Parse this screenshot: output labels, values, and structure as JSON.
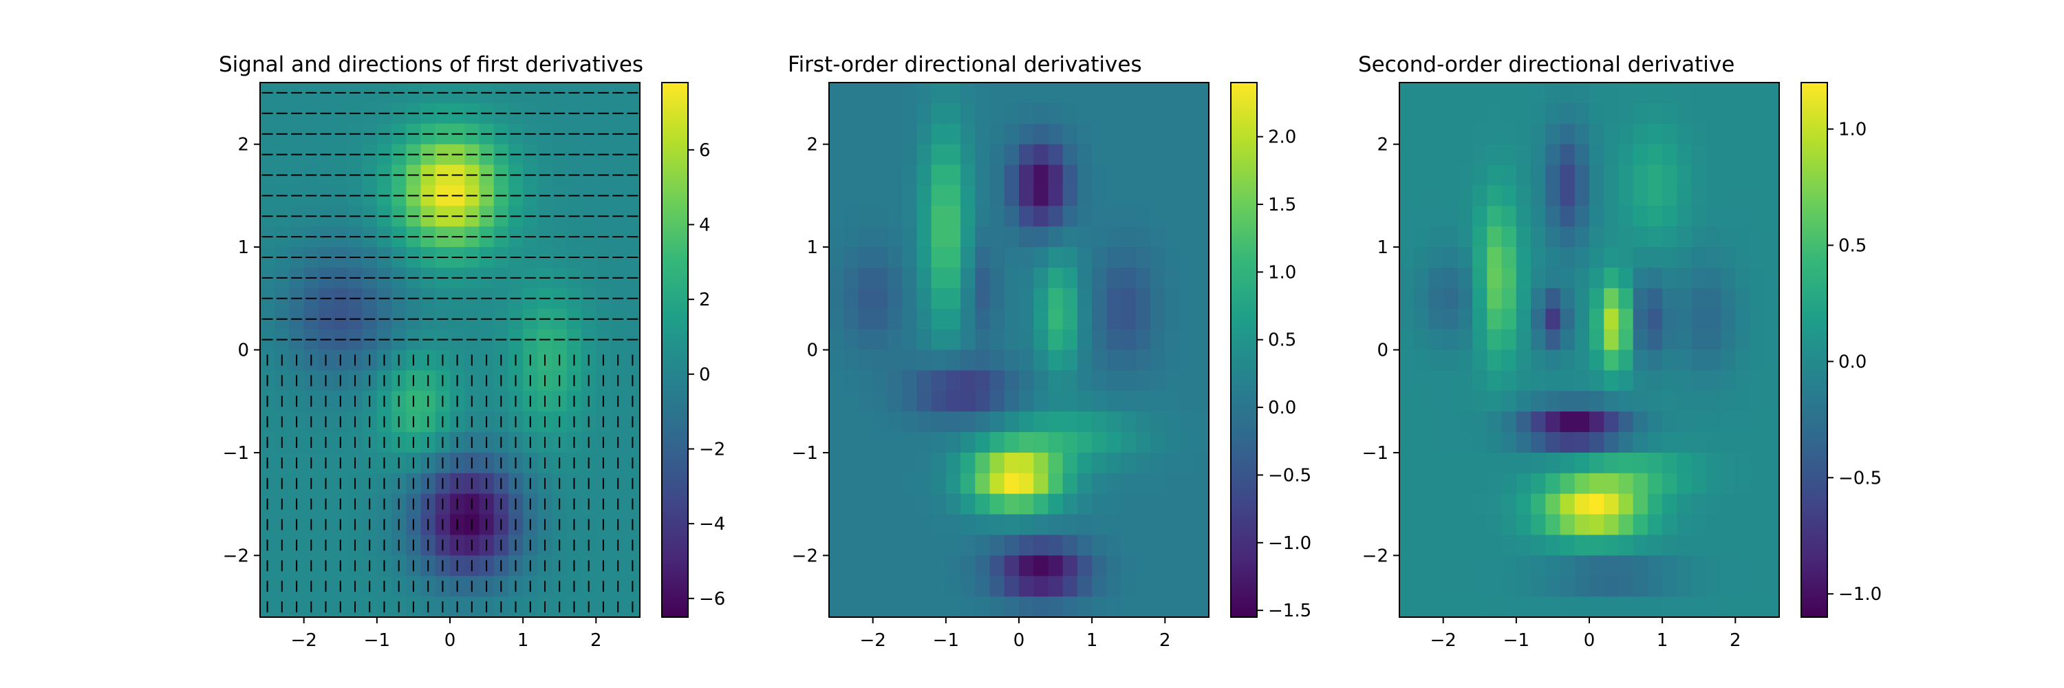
{
  "figure": {
    "colormap": "viridis",
    "viridis_stops": [
      "#440154",
      "#482878",
      "#3e4989",
      "#31688e",
      "#26828e",
      "#1f9e89",
      "#35b779",
      "#6ece58",
      "#b5de2b",
      "#fde725"
    ]
  },
  "chart_data": [
    {
      "type": "heatmap",
      "title": "Signal and directions of first derivatives",
      "xlabel": "",
      "ylabel": "",
      "xlim": [
        -2.6,
        2.6
      ],
      "ylim": [
        -2.6,
        2.6
      ],
      "xticks": [
        -2,
        -1,
        0,
        1,
        2
      ],
      "yticks": [
        -2,
        -1,
        0,
        1,
        2
      ],
      "xtick_labels": [
        "−2",
        "−1",
        "0",
        "1",
        "2"
      ],
      "ytick_labels": [
        "−2",
        "−1",
        "0",
        "1",
        "2"
      ],
      "grid_size": 26,
      "value_range": [
        -6.5,
        7.8
      ],
      "colorbar": {
        "ticks": [
          -6,
          -4,
          -2,
          0,
          2,
          4,
          6
        ],
        "labels": [
          "−6",
          "−4",
          "−2",
          "0",
          "2",
          "4",
          "6"
        ]
      },
      "field": {
        "baseline": 0.3,
        "blobs": [
          {
            "x": 0.0,
            "y": 1.55,
            "sx": 0.5,
            "sy": 0.4,
            "amp": 7.4
          },
          {
            "x": 0.25,
            "y": -1.65,
            "sx": 0.5,
            "sy": 0.4,
            "amp": -6.7
          },
          {
            "x": -1.5,
            "y": 0.35,
            "sx": 0.55,
            "sy": 0.45,
            "amp": -3.0
          },
          {
            "x": -0.45,
            "y": -0.55,
            "sx": 0.35,
            "sy": 0.35,
            "amp": 2.8
          },
          {
            "x": 1.35,
            "y": -0.1,
            "sx": 0.35,
            "sy": 0.5,
            "amp": 2.4
          }
        ]
      },
      "quiver": {
        "upper_region": "horizontal",
        "lower_region": "vertical",
        "split_y": 0.0
      }
    },
    {
      "type": "heatmap",
      "title": "First-order directional derivatives",
      "xlabel": "",
      "ylabel": "",
      "xlim": [
        -2.6,
        2.6
      ],
      "ylim": [
        -2.6,
        2.6
      ],
      "xticks": [
        -2,
        -1,
        0,
        1,
        2
      ],
      "yticks": [
        -2,
        -1,
        0,
        1,
        2
      ],
      "xtick_labels": [
        "−2",
        "−1",
        "0",
        "1",
        "2"
      ],
      "ytick_labels": [
        "−2",
        "−1",
        "0",
        "1",
        "2"
      ],
      "grid_size": 26,
      "value_range": [
        -1.55,
        2.4
      ],
      "colorbar": {
        "ticks": [
          -1.5,
          -1.0,
          -0.5,
          0.0,
          0.5,
          1.0,
          1.5,
          2.0
        ],
        "labels": [
          "−1.5",
          "−1.0",
          "−0.5",
          "0.0",
          "0.5",
          "1.0",
          "1.5",
          "2.0"
        ]
      },
      "field": {
        "baseline": 0.1,
        "blobs": [
          {
            "x": -1.0,
            "y": 1.2,
            "sx": 0.22,
            "sy": 0.7,
            "amp": 1.2
          },
          {
            "x": 0.3,
            "y": 1.6,
            "sx": 0.28,
            "sy": 0.3,
            "amp": -1.55
          },
          {
            "x": 0.55,
            "y": 0.35,
            "sx": 0.2,
            "sy": 0.4,
            "amp": 1.0
          },
          {
            "x": -2.0,
            "y": 0.5,
            "sx": 0.3,
            "sy": 0.35,
            "amp": -0.5
          },
          {
            "x": -0.5,
            "y": 0.6,
            "sx": 0.15,
            "sy": 0.35,
            "amp": -0.5
          },
          {
            "x": 1.45,
            "y": 0.4,
            "sx": 0.3,
            "sy": 0.4,
            "amp": -0.6
          },
          {
            "x": -0.8,
            "y": -0.4,
            "sx": 0.5,
            "sy": 0.2,
            "amp": -1.0
          },
          {
            "x": -0.05,
            "y": -1.25,
            "sx": 0.45,
            "sy": 0.22,
            "amp": 2.3
          },
          {
            "x": 0.7,
            "y": -0.85,
            "sx": 0.7,
            "sy": 0.2,
            "amp": 0.7
          },
          {
            "x": 0.3,
            "y": -2.15,
            "sx": 0.45,
            "sy": 0.2,
            "amp": -1.6
          }
        ]
      }
    },
    {
      "type": "heatmap",
      "title": "Second-order directional derivative",
      "xlabel": "",
      "ylabel": "",
      "xlim": [
        -2.6,
        2.6
      ],
      "ylim": [
        -2.6,
        2.6
      ],
      "xticks": [
        -2,
        -1,
        0,
        1,
        2
      ],
      "yticks": [
        -2,
        -1,
        0,
        1,
        2
      ],
      "xtick_labels": [
        "−2",
        "−1",
        "0",
        "1",
        "2"
      ],
      "ytick_labels": [
        "−2",
        "−1",
        "0",
        "1",
        "2"
      ],
      "grid_size": 26,
      "value_range": [
        -1.1,
        1.2
      ],
      "colorbar": {
        "ticks": [
          -1.0,
          -0.5,
          0.0,
          0.5,
          1.0
        ],
        "labels": [
          "−1.0",
          "−0.5",
          "0.0",
          "0.5",
          "1.0"
        ]
      },
      "field": {
        "baseline": 0.0,
        "blobs": [
          {
            "x": -1.25,
            "y": 0.7,
            "sx": 0.2,
            "sy": 0.55,
            "amp": 0.7
          },
          {
            "x": -0.3,
            "y": 1.6,
            "sx": 0.2,
            "sy": 0.4,
            "amp": -0.6
          },
          {
            "x": 0.9,
            "y": 1.6,
            "sx": 0.3,
            "sy": 0.4,
            "amp": 0.3
          },
          {
            "x": 0.35,
            "y": 0.25,
            "sx": 0.17,
            "sy": 0.3,
            "amp": 1.0
          },
          {
            "x": -0.5,
            "y": 0.3,
            "sx": 0.15,
            "sy": 0.2,
            "amp": -0.7
          },
          {
            "x": 0.8,
            "y": 0.3,
            "sx": 0.2,
            "sy": 0.3,
            "amp": -0.5
          },
          {
            "x": -1.9,
            "y": 0.5,
            "sx": 0.3,
            "sy": 0.3,
            "amp": -0.3
          },
          {
            "x": 1.6,
            "y": 0.3,
            "sx": 0.3,
            "sy": 0.4,
            "amp": -0.3
          },
          {
            "x": -0.2,
            "y": -0.75,
            "sx": 0.5,
            "sy": 0.15,
            "amp": -1.1
          },
          {
            "x": 0.05,
            "y": -1.55,
            "sx": 0.5,
            "sy": 0.2,
            "amp": 1.2
          },
          {
            "x": 0.6,
            "y": -1.2,
            "sx": 0.6,
            "sy": 0.15,
            "amp": 0.4
          },
          {
            "x": 0.3,
            "y": -2.2,
            "sx": 0.6,
            "sy": 0.12,
            "amp": -0.4
          }
        ]
      }
    }
  ]
}
